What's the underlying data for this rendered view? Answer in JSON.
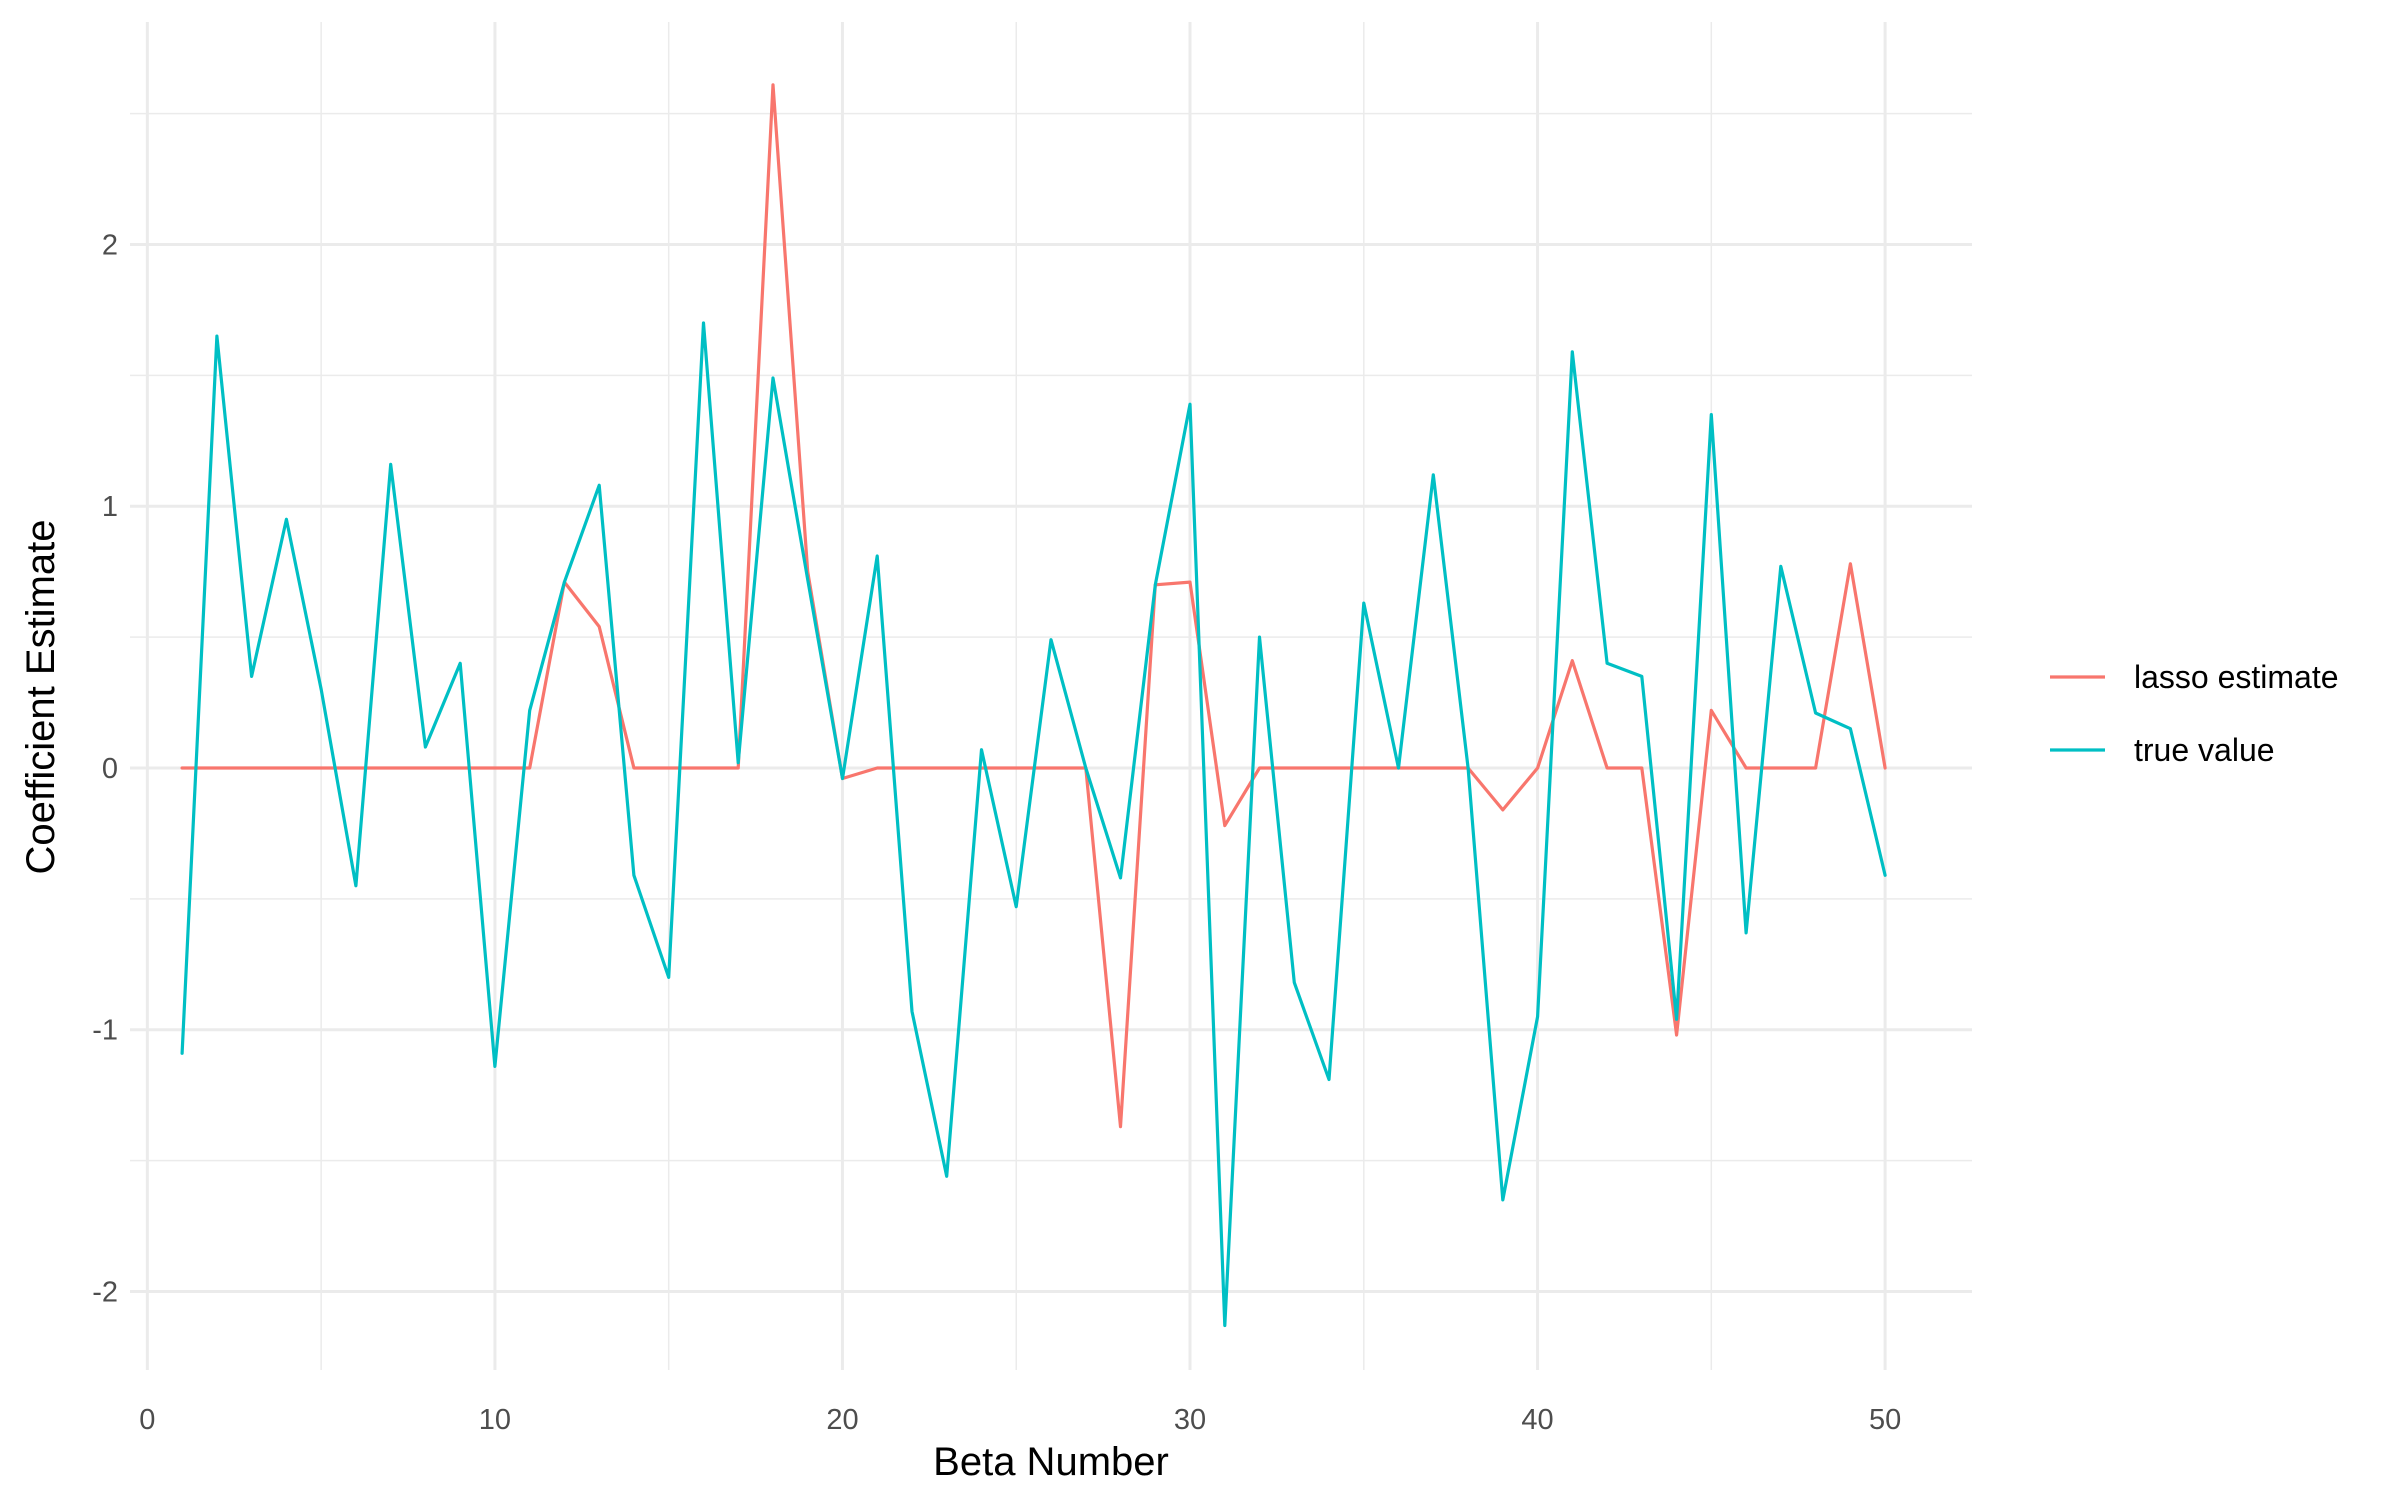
{
  "chart_data": {
    "type": "line",
    "title": "",
    "xlabel": "Beta Number",
    "ylabel": "Coefficient Estimate",
    "xlim": [
      -0.5,
      52.5
    ],
    "ylim": [
      -2.3,
      2.85
    ],
    "x_ticks": [
      0,
      10,
      20,
      30,
      40,
      50
    ],
    "x_tick_labels": [
      "0",
      "10",
      "20",
      "30",
      "40",
      "50"
    ],
    "x_minor_ticks": [
      5,
      15,
      25,
      35,
      45
    ],
    "y_ticks": [
      -2,
      -1,
      0,
      1,
      2
    ],
    "y_tick_labels": [
      "-2",
      "-1",
      "0",
      "1",
      "2"
    ],
    "y_minor_ticks": [
      -1.5,
      -0.5,
      0.5,
      1.5,
      2.5
    ],
    "grid": true,
    "legend_position": "right",
    "x": [
      1,
      2,
      3,
      4,
      5,
      6,
      7,
      8,
      9,
      10,
      11,
      12,
      13,
      14,
      15,
      16,
      17,
      18,
      19,
      20,
      21,
      22,
      23,
      24,
      25,
      26,
      27,
      28,
      29,
      30,
      31,
      32,
      33,
      34,
      35,
      36,
      37,
      38,
      39,
      40,
      41,
      42,
      43,
      44,
      45,
      46,
      47,
      48,
      49,
      50
    ],
    "series": [
      {
        "name": "lasso estimate",
        "color": "#F8766D",
        "values": [
          0,
          0,
          0,
          0,
          0,
          0,
          0,
          0,
          0,
          0,
          0,
          0.71,
          0.54,
          0,
          0,
          0,
          0,
          2.61,
          0.75,
          -0.04,
          0,
          0,
          0,
          0,
          0,
          0,
          0,
          -1.37,
          0.7,
          0.71,
          -0.22,
          0,
          0,
          0,
          0,
          0,
          0,
          0,
          -0.16,
          0,
          0.41,
          0,
          0,
          -1.02,
          0.22,
          0,
          0,
          0,
          0.78,
          0
        ]
      },
      {
        "name": "true value",
        "color": "#00BFC4",
        "values": [
          -1.09,
          1.65,
          0.35,
          0.95,
          0.3,
          -0.45,
          1.16,
          0.08,
          0.4,
          -1.14,
          0.22,
          0.71,
          1.08,
          -0.41,
          -0.8,
          1.7,
          0.02,
          1.49,
          0.72,
          -0.04,
          0.81,
          -0.93,
          -1.56,
          0.07,
          -0.53,
          0.49,
          0,
          -0.42,
          0.7,
          1.39,
          -2.13,
          0.5,
          -0.82,
          -1.19,
          0.63,
          0,
          1.12,
          0,
          -1.65,
          -0.95,
          1.59,
          0.4,
          0.35,
          -0.96,
          1.35,
          -0.63,
          0.77,
          0.21,
          0.15,
          -0.41
        ]
      }
    ]
  }
}
